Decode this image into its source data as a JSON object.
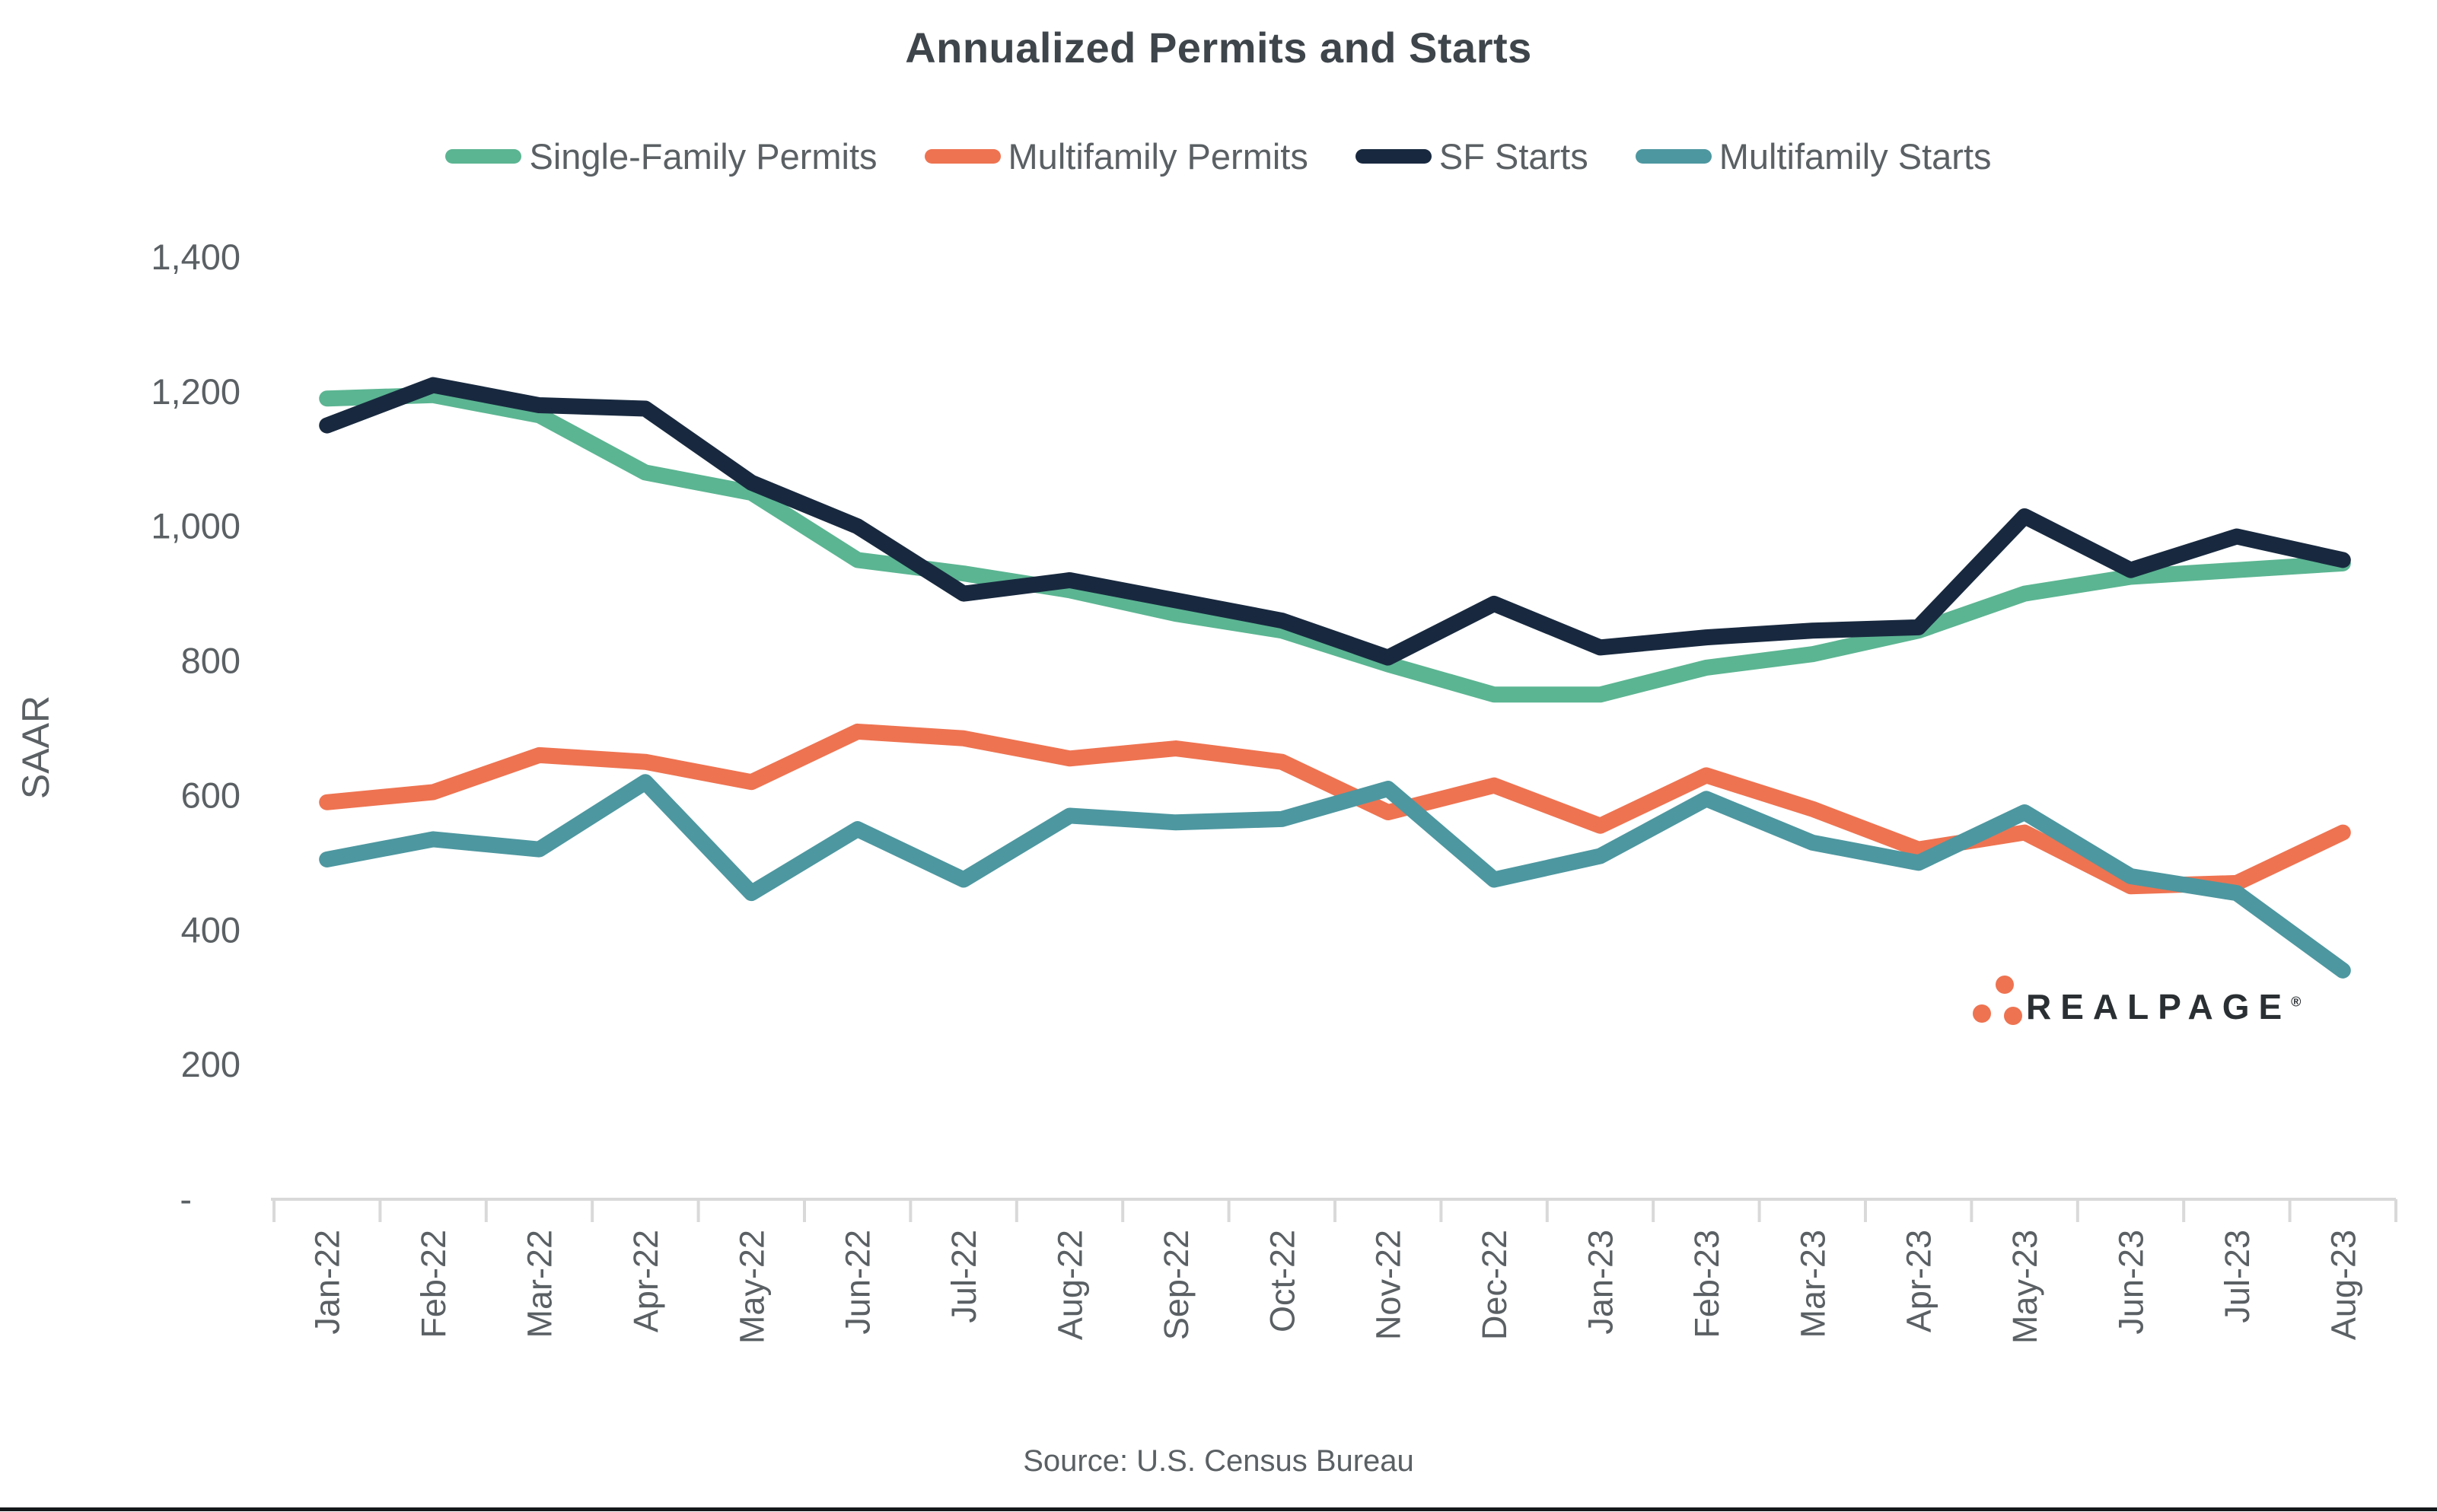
{
  "title": "Annualized Permits and Starts",
  "y_axis": {
    "label": "SAAR"
  },
  "source": "Source: U.S. Census Bureau",
  "logo": {
    "text": "REALPAGE",
    "registered": "®",
    "dot_color": "#ee7351",
    "text_color": "#2a2f33"
  },
  "colors": {
    "single_family_permits": "#5bb592",
    "multifamily_permits": "#ee7351",
    "sf_starts": "#18293f",
    "multifamily_starts": "#4d97a0",
    "axis": "#d9d9d9",
    "text": "#5a6064",
    "title_text": "#3e454b"
  },
  "chart_data": {
    "type": "line",
    "title": "Annualized Permits and Starts",
    "xlabel": "",
    "ylabel": "SAAR",
    "ylim": [
      0,
      1400
    ],
    "grid": false,
    "legend_position": "top",
    "y_tick_labels": [
      "1,400",
      "1,200",
      "1,000",
      "800",
      "600",
      "400",
      "200",
      "-"
    ],
    "y_tick_values": [
      1400,
      1200,
      1000,
      800,
      600,
      400,
      200,
      0
    ],
    "categories": [
      "Jan-22",
      "Feb-22",
      "Mar-22",
      "Apr-22",
      "May-22",
      "Jun-22",
      "Jul-22",
      "Aug-22",
      "Sep-22",
      "Oct-22",
      "Nov-22",
      "Dec-22",
      "Jan-23",
      "Feb-23",
      "Mar-23",
      "Apr-23",
      "May-23",
      "Jun-23",
      "Jul-23",
      "Aug-23"
    ],
    "series": [
      {
        "name": "Single-Family Permits",
        "color": "#5bb592",
        "values": [
          1190,
          1195,
          1165,
          1080,
          1050,
          950,
          930,
          905,
          870,
          845,
          795,
          750,
          750,
          790,
          810,
          845,
          900,
          925,
          935,
          945
        ]
      },
      {
        "name": "Multifamily Permits",
        "color": "#ee7351",
        "values": [
          590,
          605,
          660,
          650,
          620,
          695,
          685,
          655,
          670,
          650,
          575,
          615,
          555,
          630,
          580,
          520,
          545,
          465,
          470,
          545
        ]
      },
      {
        "name": "SF Starts",
        "color": "#18293f",
        "values": [
          1150,
          1210,
          1180,
          1175,
          1065,
          1000,
          900,
          920,
          890,
          860,
          805,
          885,
          820,
          835,
          845,
          850,
          1015,
          935,
          985,
          950
        ]
      },
      {
        "name": "Multifamily Starts",
        "color": "#4d97a0",
        "values": [
          505,
          535,
          520,
          620,
          455,
          550,
          475,
          570,
          560,
          565,
          610,
          475,
          510,
          595,
          530,
          500,
          575,
          480,
          455,
          340
        ]
      }
    ]
  }
}
